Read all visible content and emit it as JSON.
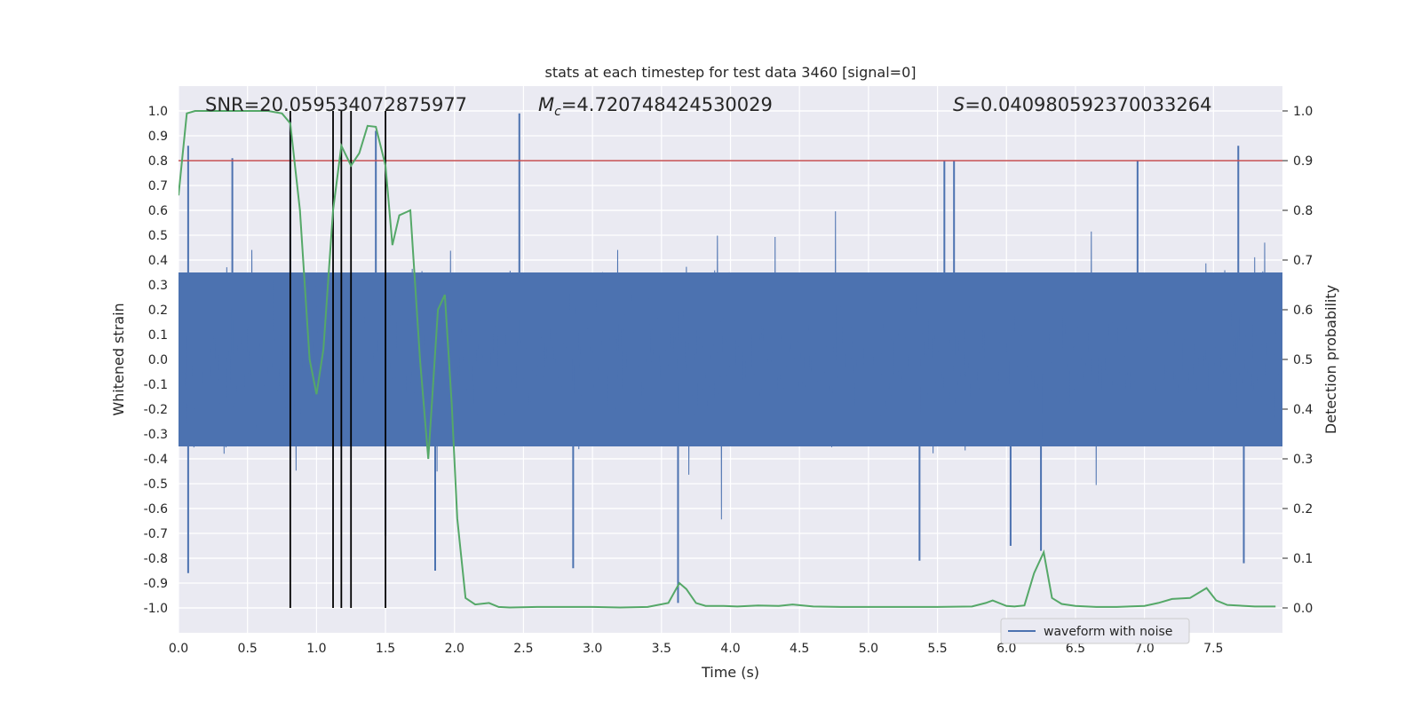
{
  "chart_data": {
    "type": "line",
    "title": "stats at each timestep for test data 3460 [signal=0]",
    "xlabel": "Time (s)",
    "ylabel_left": "Whitened strain",
    "ylabel_right": "Detection probability",
    "xlim": [
      0.0,
      8.0
    ],
    "ylim_left": [
      -1.1,
      1.1
    ],
    "ylim_right": [
      -0.05,
      1.05
    ],
    "x_ticks": [
      "0.0",
      "0.5",
      "1.0",
      "1.5",
      "2.0",
      "2.5",
      "3.0",
      "3.5",
      "4.0",
      "4.5",
      "5.0",
      "5.5",
      "6.0",
      "6.5",
      "7.0",
      "7.5"
    ],
    "y_left_ticks": [
      "1.0",
      "0.9",
      "0.8",
      "0.7",
      "0.6",
      "0.5",
      "0.4",
      "0.3",
      "0.2",
      "0.1",
      "0.0",
      "-0.1",
      "-0.2",
      "-0.3",
      "-0.4",
      "-0.5",
      "-0.6",
      "-0.7",
      "-0.8",
      "-0.9",
      "-1.0"
    ],
    "y_right_ticks": [
      "1.0",
      "0.9",
      "0.8",
      "0.7",
      "0.6",
      "0.5",
      "0.4",
      "0.3",
      "0.2",
      "0.1",
      "0.0"
    ],
    "annotations": {
      "snr": "SNR=20.059534072875977",
      "mc_symbol": "M",
      "mc_sub": "c",
      "mc_value": "=4.720748424530029",
      "s_symbol": "S",
      "s_value": "=0.040980592370033264"
    },
    "threshold": {
      "value": 0.9,
      "axis": "right",
      "color": "#c44e52"
    },
    "vertical_markers": [
      0.81,
      1.12,
      1.18,
      1.25,
      1.5
    ],
    "series": [
      {
        "name": "waveform with noise",
        "axis": "left",
        "color": "#4c72b0",
        "band_peak": 0.45,
        "core_fill": 0.35,
        "samples": 4096,
        "seed": 3460,
        "spikes": [
          {
            "x": 0.07,
            "y": 0.86
          },
          {
            "x": 0.07,
            "y": -0.86
          },
          {
            "x": 0.39,
            "y": 0.81
          },
          {
            "x": 0.81,
            "y": 0.97
          },
          {
            "x": 1.43,
            "y": 0.92
          },
          {
            "x": 1.5,
            "y": -0.71
          },
          {
            "x": 1.86,
            "y": -0.85
          },
          {
            "x": 2.47,
            "y": 0.99
          },
          {
            "x": 2.86,
            "y": -0.84
          },
          {
            "x": 3.62,
            "y": -0.98
          },
          {
            "x": 5.37,
            "y": -0.81
          },
          {
            "x": 5.55,
            "y": 0.8
          },
          {
            "x": 5.62,
            "y": 0.8
          },
          {
            "x": 6.03,
            "y": -0.75
          },
          {
            "x": 6.25,
            "y": -0.77
          },
          {
            "x": 7.68,
            "y": 0.86
          },
          {
            "x": 7.72,
            "y": -0.82
          },
          {
            "x": 6.95,
            "y": 0.8
          }
        ]
      },
      {
        "name": "detection probability",
        "axis": "right",
        "color": "#55a868",
        "x": [
          0.0,
          0.06,
          0.12,
          0.3,
          0.5,
          0.65,
          0.75,
          0.81,
          0.88,
          0.95,
          1.0,
          1.05,
          1.12,
          1.18,
          1.25,
          1.31,
          1.37,
          1.43,
          1.5,
          1.55,
          1.6,
          1.68,
          1.75,
          1.81,
          1.88,
          1.93,
          1.98,
          2.02,
          2.08,
          2.15,
          2.25,
          2.32,
          2.4,
          2.6,
          2.8,
          3.0,
          3.2,
          3.4,
          3.55,
          3.63,
          3.68,
          3.75,
          3.82,
          3.95,
          4.05,
          4.2,
          4.35,
          4.45,
          4.6,
          4.8,
          5.0,
          5.2,
          5.5,
          5.75,
          5.85,
          5.9,
          6.0,
          6.06,
          6.13,
          6.2,
          6.27,
          6.33,
          6.4,
          6.5,
          6.65,
          6.8,
          7.0,
          7.1,
          7.2,
          7.33,
          7.45,
          7.52,
          7.6,
          7.8,
          7.95
        ],
        "y": [
          0.83,
          0.995,
          1.0,
          1.0,
          1.0,
          1.0,
          0.995,
          0.975,
          0.8,
          0.5,
          0.43,
          0.52,
          0.8,
          0.93,
          0.89,
          0.915,
          0.97,
          0.968,
          0.89,
          0.73,
          0.79,
          0.8,
          0.5,
          0.3,
          0.6,
          0.63,
          0.41,
          0.18,
          0.02,
          0.007,
          0.01,
          0.002,
          0.001,
          0.002,
          0.002,
          0.002,
          0.001,
          0.002,
          0.01,
          0.05,
          0.038,
          0.01,
          0.004,
          0.004,
          0.003,
          0.005,
          0.004,
          0.007,
          0.003,
          0.002,
          0.002,
          0.002,
          0.002,
          0.003,
          0.01,
          0.015,
          0.004,
          0.003,
          0.005,
          0.07,
          0.112,
          0.02,
          0.008,
          0.004,
          0.002,
          0.002,
          0.004,
          0.01,
          0.018,
          0.02,
          0.04,
          0.015,
          0.006,
          0.003,
          0.003
        ]
      }
    ],
    "legend": {
      "location": "lower-right",
      "label": "waveform with noise"
    }
  }
}
